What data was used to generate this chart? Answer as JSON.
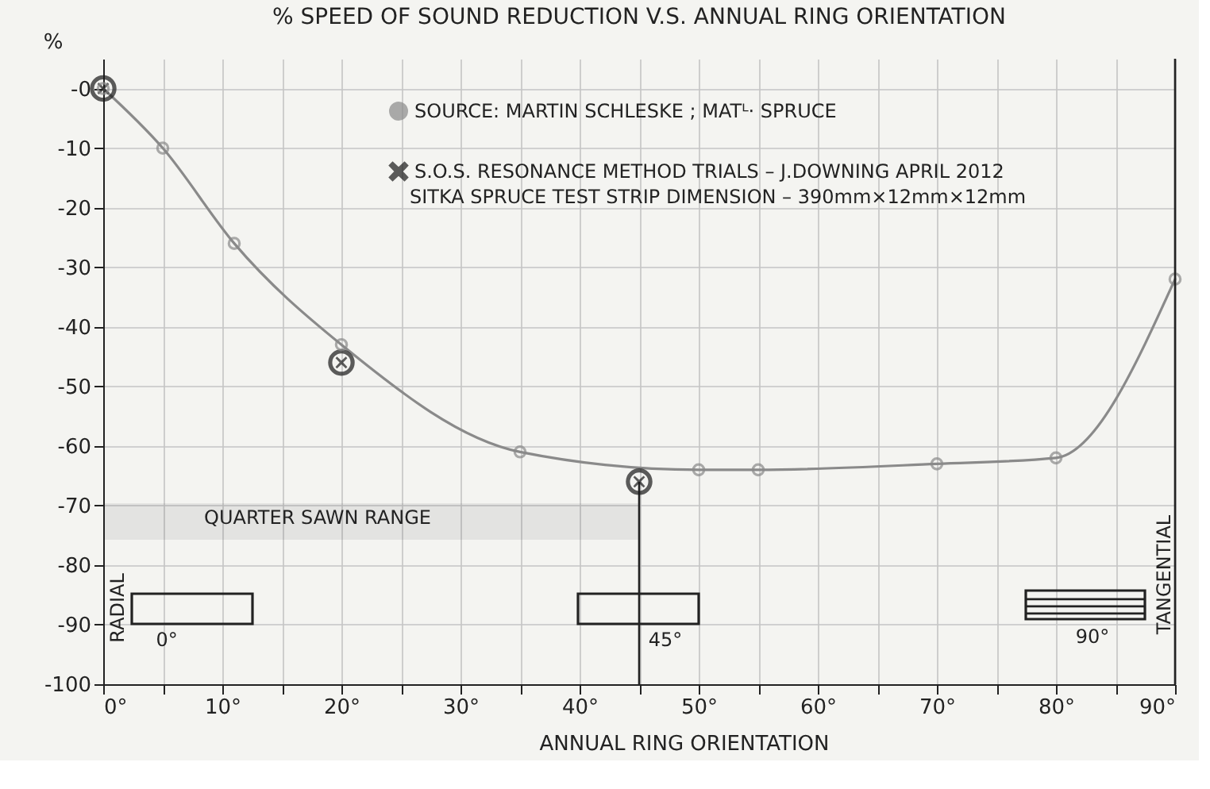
{
  "chart_data": {
    "type": "line",
    "title": "% SPEED OF SOUND REDUCTION V.S. ANNUAL RING ORIENTATION",
    "xlabel": "ANNUAL RING ORIENTATION",
    "ylabel": "%",
    "series": [
      {
        "name": "SOURCE: MARTIN SCHLESKE ; MATᴸ· SPRUCE",
        "color": "#8a8a8a",
        "marker": "circle",
        "x": [
          0,
          5,
          11,
          20,
          35,
          50,
          55,
          70,
          80,
          90
        ],
        "values": [
          0,
          -10,
          -26,
          -43,
          -61,
          -64,
          -64,
          -63,
          -62,
          -32
        ]
      },
      {
        "name": "S.O.S. RESONANCE METHOD TRIALS – J.DOWNING APRIL 2012",
        "type": "scatter",
        "color": "#1a1a1a",
        "marker": "cross",
        "x": [
          0,
          20,
          45
        ],
        "values": [
          0,
          -46,
          -66
        ]
      }
    ],
    "xlim": [
      0,
      90
    ],
    "ylim": [
      -100,
      5
    ],
    "xticks": [
      {
        "value": 0,
        "label": "0°"
      },
      {
        "value": 5,
        "label": null
      },
      {
        "value": 10,
        "label": "10°"
      },
      {
        "value": 15,
        "label": null
      },
      {
        "value": 20,
        "label": "20°"
      },
      {
        "value": 25,
        "label": null
      },
      {
        "value": 30,
        "label": "30°"
      },
      {
        "value": 35,
        "label": null
      },
      {
        "value": 40,
        "label": "40°"
      },
      {
        "value": 45,
        "label": null
      },
      {
        "value": 50,
        "label": "50°"
      },
      {
        "value": 55,
        "label": null
      },
      {
        "value": 60,
        "label": "60°"
      },
      {
        "value": 65,
        "label": null
      },
      {
        "value": 70,
        "label": "70°"
      },
      {
        "value": 75,
        "label": null
      },
      {
        "value": 80,
        "label": "80°"
      },
      {
        "value": 85,
        "label": null
      },
      {
        "value": 90,
        "label": "90°"
      }
    ],
    "yticks": [
      -100,
      -90,
      -80,
      -70,
      -60,
      -50,
      -40,
      -30,
      -20,
      -10,
      {
        "value": 0,
        "label": "-0"
      }
    ],
    "ref_lines": [
      {
        "axis": "x",
        "value": 45,
        "color": "#222222"
      }
    ],
    "bands": [
      {
        "axis": "x",
        "from": 0,
        "to": 45,
        "label": "QUARTER SAWN RANGE",
        "color": "#222222"
      }
    ],
    "annotations": [
      "SITKA SPRUCE TEST STRIP DIMENSION – 390mm×12mm×12mm",
      "RADIAL",
      "0°",
      "45°",
      "90°",
      "TANGENTIAL"
    ],
    "grid": true,
    "legend": "top",
    "line_style": "solid"
  }
}
